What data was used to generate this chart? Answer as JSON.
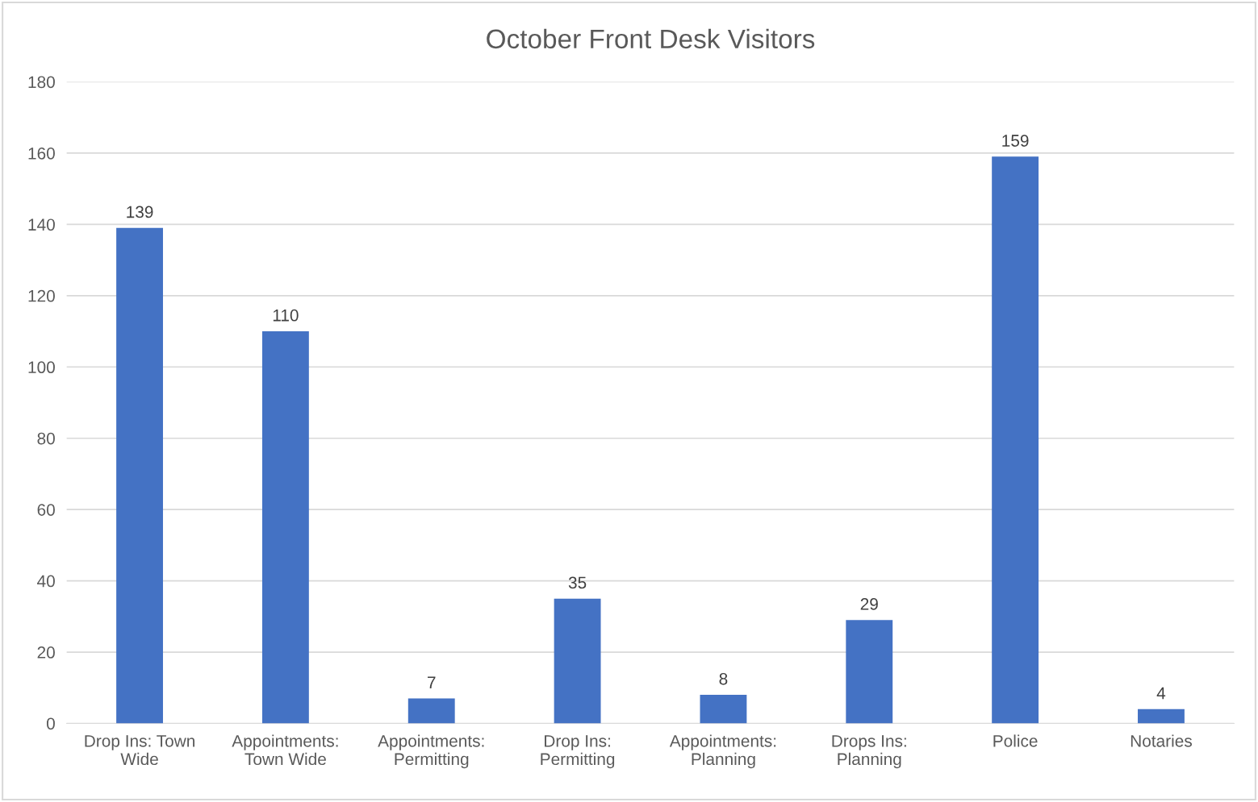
{
  "chart_data": {
    "type": "bar",
    "title": "October Front Desk Visitors",
    "categories": [
      "Drop Ins: Town\nWide",
      "Appointments:\nTown Wide",
      "Appointments:\nPermitting",
      "Drop Ins:\nPermitting",
      "Appointments:\nPlanning",
      "Drops Ins:\nPlanning",
      "Police",
      "Notaries"
    ],
    "values": [
      139,
      110,
      7,
      35,
      8,
      29,
      159,
      4
    ],
    "color": "#4472c4",
    "ylim": [
      0,
      180
    ],
    "yticks": [
      0,
      20,
      40,
      60,
      80,
      100,
      120,
      140,
      160,
      180
    ],
    "grid": "y",
    "data_labels": true
  }
}
